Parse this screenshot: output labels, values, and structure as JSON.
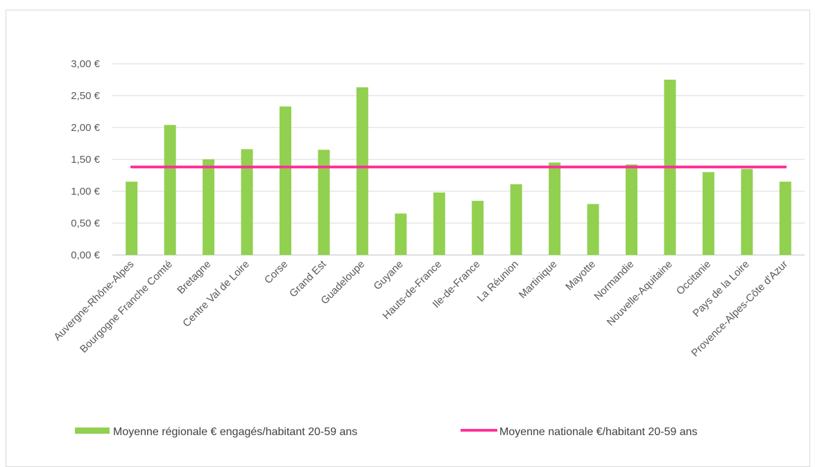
{
  "chart_data": {
    "type": "bar",
    "categories": [
      "Auvergne-Rhône-Alpes",
      "Bourgogne Franche Comté",
      "Bretagne",
      "Centre Val de Loire",
      "Corse",
      "Grand Est",
      "Guadeloupe",
      "Guyane",
      "Hauts-de-France",
      "Ile-de-France",
      "La Réunion",
      "Martinique",
      "Mayotte",
      "Normandie",
      "Nouvelle-Aquitaine",
      "Occitanie",
      "Pays de la Loire",
      "Provence-Alpes-Côte d'Azur"
    ],
    "series": [
      {
        "name": "Moyenne régionale € engagés/habitant  20-59 ans",
        "type": "bar",
        "color": "#92D050",
        "values": [
          1.15,
          2.04,
          1.5,
          1.66,
          2.33,
          1.65,
          2.63,
          0.65,
          0.98,
          0.85,
          1.11,
          1.45,
          0.8,
          1.42,
          2.75,
          1.3,
          1.35,
          1.15
        ]
      },
      {
        "name": "Moyenne nationale €/habitant 20-59 ans",
        "type": "line",
        "color": "#FF3399",
        "value": 1.38
      }
    ],
    "yticks": [
      "0,00 €",
      "0,50 €",
      "1,00 €",
      "1,50 €",
      "2,00 €",
      "2,50 €",
      "3,00 €"
    ],
    "ylim": [
      0,
      3
    ],
    "grid": true,
    "legend_position": "bottom"
  }
}
